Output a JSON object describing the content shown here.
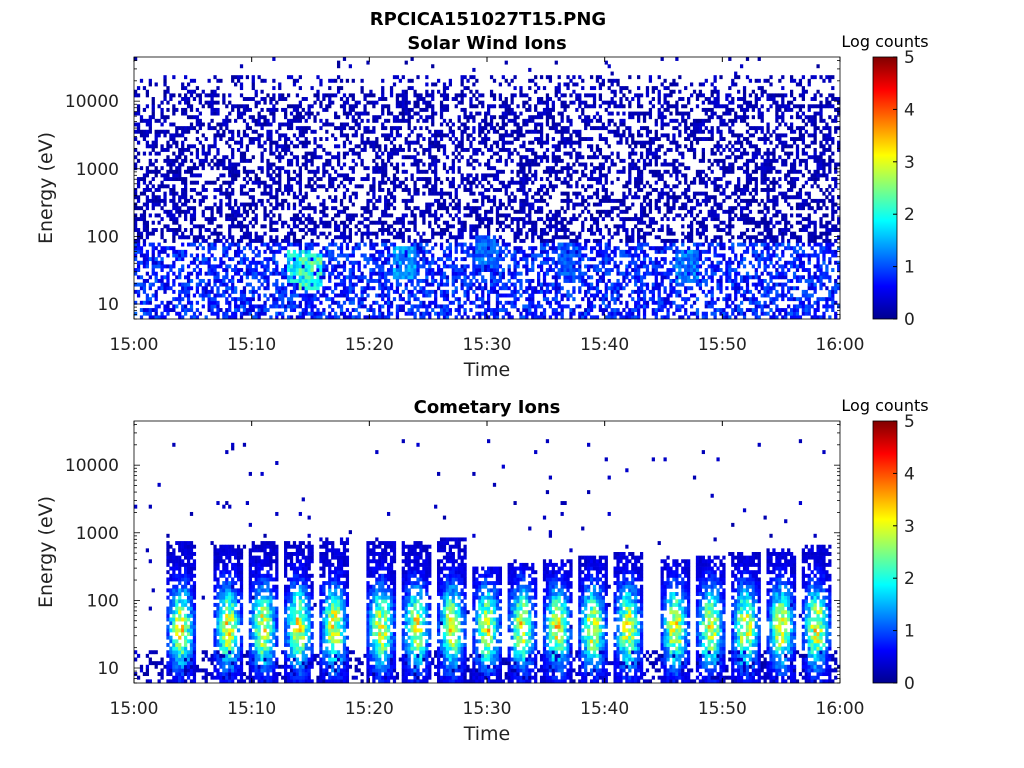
{
  "figure_title": "RPCICA151027T15.PNG",
  "chart_data": [
    {
      "type": "heatmap",
      "title": "Solar Wind Ions",
      "xlabel": "Time",
      "ylabel": "Energy (eV)",
      "x_ticks": [
        "15:00",
        "15:10",
        "15:20",
        "15:30",
        "15:40",
        "15:50",
        "16:00"
      ],
      "x_range": [
        "15:00",
        "16:00"
      ],
      "y_scale": "log",
      "y_ticks": [
        10,
        100,
        1000,
        10000
      ],
      "y_tick_labels": [
        "10",
        "100",
        "1000",
        "10000"
      ],
      "y_range": [
        6,
        45000
      ],
      "colorbar": {
        "label": "Log counts",
        "range": [
          0,
          5
        ],
        "ticks": [
          "0",
          "1",
          "2",
          "3",
          "4",
          "5"
        ],
        "colormap": "jet"
      },
      "features": {
        "background_fill": 0.45,
        "background_level": 0.12,
        "low_energy_level": 0.3,
        "hot_spots": [
          {
            "time": "15:14",
            "energy_eV": 35,
            "log_counts": 2.2
          },
          {
            "time": "15:15",
            "energy_eV": 30,
            "log_counts": 2.6
          },
          {
            "time": "15:23",
            "energy_eV": 40,
            "log_counts": 1.7
          },
          {
            "time": "15:30",
            "energy_eV": 60,
            "log_counts": 1.4
          },
          {
            "time": "15:37",
            "energy_eV": 45,
            "log_counts": 1.3
          },
          {
            "time": "15:47",
            "energy_eV": 35,
            "log_counts": 1.5
          }
        ]
      }
    },
    {
      "type": "heatmap",
      "title": "Cometary Ions",
      "xlabel": "Time",
      "ylabel": "Energy (eV)",
      "x_ticks": [
        "15:00",
        "15:10",
        "15:20",
        "15:30",
        "15:40",
        "15:50",
        "16:00"
      ],
      "x_range": [
        "15:00",
        "16:00"
      ],
      "y_scale": "log",
      "y_ticks": [
        10,
        100,
        1000,
        10000
      ],
      "y_tick_labels": [
        "10",
        "100",
        "1000",
        "10000"
      ],
      "y_range": [
        6,
        45000
      ],
      "colorbar": {
        "label": "Log counts",
        "range": [
          0,
          5
        ],
        "ticks": [
          "0",
          "1",
          "2",
          "3",
          "4",
          "5"
        ],
        "colormap": "jet"
      },
      "features": {
        "burst_times": [
          "15:04",
          "15:08",
          "15:11",
          "15:14",
          "15:17",
          "15:21",
          "15:24",
          "15:27",
          "15:30",
          "15:33",
          "15:36",
          "15:39",
          "15:42",
          "15:46",
          "15:49",
          "15:52",
          "15:55",
          "15:58"
        ],
        "burst_peak_energy_eV": 40,
        "burst_peak_log_counts": 2.8,
        "burst_top_energy_eV": 800
      }
    }
  ]
}
